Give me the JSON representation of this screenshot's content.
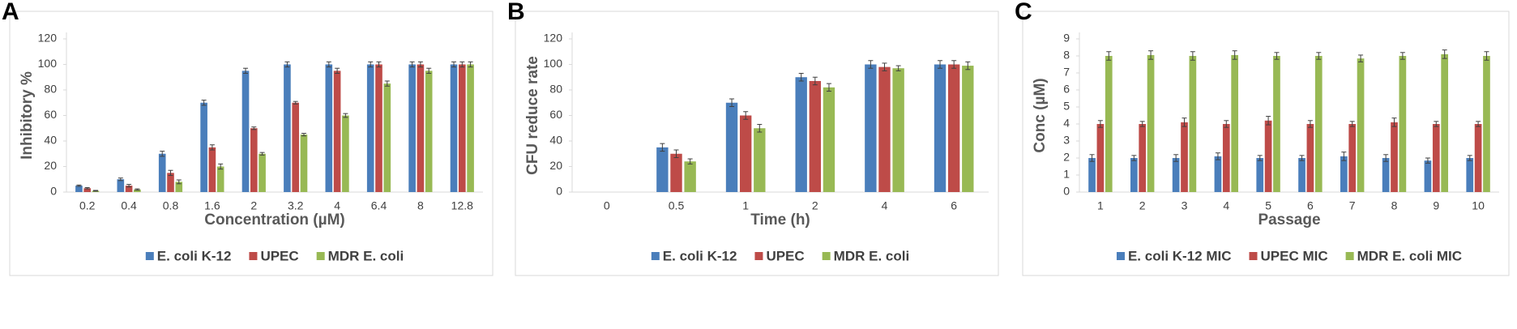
{
  "chart_data": [
    {
      "type": "bar",
      "panel": "A",
      "x_label": "Concentration (µM)",
      "y_label": "Inhibitory %",
      "categories": [
        "0.2",
        "0.4",
        "0.8",
        "1.6",
        "2",
        "3.2",
        "4",
        "6.4",
        "8",
        "12.8"
      ],
      "ylim": [
        0,
        120
      ],
      "yticks": [
        0,
        20,
        40,
        60,
        80,
        100,
        120
      ],
      "grid": false,
      "series": [
        {
          "name": "E. coli K-12",
          "color": "#4a7ebb",
          "values": [
            5,
            10,
            30,
            70,
            95,
            100,
            100,
            100,
            100,
            100
          ],
          "errors": [
            0.5,
            1,
            2,
            2,
            2,
            2,
            2,
            2,
            2,
            2
          ]
        },
        {
          "name": "UPEC",
          "color": "#be4b48",
          "values": [
            3,
            5,
            15,
            35,
            50,
            70,
            95,
            100,
            100,
            100
          ],
          "errors": [
            0.5,
            1,
            2,
            2,
            1,
            1,
            2,
            2,
            2,
            2
          ]
        },
        {
          "name": "MDR E. coli",
          "color": "#98b954",
          "values": [
            1,
            2,
            8,
            20,
            30,
            45,
            60,
            85,
            95,
            100
          ],
          "errors": [
            0.3,
            0.5,
            1.5,
            2,
            1,
            1,
            1.5,
            2,
            2,
            2
          ]
        }
      ]
    },
    {
      "type": "bar",
      "panel": "B",
      "x_label": "Time (h)",
      "y_label": "CFU reduce rate",
      "categories": [
        "0",
        "0.5",
        "1",
        "2",
        "4",
        "6"
      ],
      "ylim": [
        0,
        120
      ],
      "yticks": [
        0,
        20,
        40,
        60,
        80,
        100,
        120
      ],
      "grid": false,
      "series": [
        {
          "name": "E. coli K-12",
          "color": "#4a7ebb",
          "values": [
            0,
            35,
            70,
            90,
            100,
            100
          ],
          "errors": [
            0,
            3,
            3,
            3,
            3,
            3
          ]
        },
        {
          "name": "UPEC",
          "color": "#be4b48",
          "values": [
            0,
            30,
            60,
            87,
            98,
            100
          ],
          "errors": [
            0,
            3,
            3,
            3,
            3,
            3
          ]
        },
        {
          "name": "MDR E. coli",
          "color": "#98b954",
          "values": [
            0,
            24,
            50,
            82,
            97,
            99
          ],
          "errors": [
            0,
            2,
            3,
            3,
            2,
            3
          ]
        }
      ]
    },
    {
      "type": "bar",
      "panel": "C",
      "x_label": "Passage",
      "y_label": "Conc (µM)",
      "categories": [
        "1",
        "2",
        "3",
        "4",
        "5",
        "6",
        "7",
        "8",
        "9",
        "10"
      ],
      "ylim": [
        0,
        9
      ],
      "yticks": [
        0,
        1,
        2,
        3,
        4,
        5,
        6,
        7,
        8,
        9
      ],
      "grid": false,
      "series": [
        {
          "name": "E. coli K-12 MIC",
          "color": "#4a7ebb",
          "values": [
            2,
            2,
            2,
            2.1,
            2,
            2,
            2.1,
            2,
            1.85,
            2
          ],
          "errors": [
            0.2,
            0.15,
            0.2,
            0.2,
            0.15,
            0.15,
            0.25,
            0.2,
            0.15,
            0.15
          ]
        },
        {
          "name": "UPEC MIC",
          "color": "#be4b48",
          "values": [
            4,
            4,
            4.1,
            4,
            4.2,
            4,
            4,
            4.1,
            4,
            4
          ],
          "errors": [
            0.2,
            0.15,
            0.25,
            0.2,
            0.25,
            0.2,
            0.15,
            0.25,
            0.15,
            0.15
          ]
        },
        {
          "name": "MDR E. coli MIC",
          "color": "#98b954",
          "values": [
            8,
            8.05,
            8,
            8.05,
            8,
            8,
            7.85,
            8,
            8.1,
            8
          ],
          "errors": [
            0.25,
            0.25,
            0.25,
            0.25,
            0.2,
            0.2,
            0.2,
            0.2,
            0.25,
            0.25
          ]
        }
      ]
    }
  ]
}
